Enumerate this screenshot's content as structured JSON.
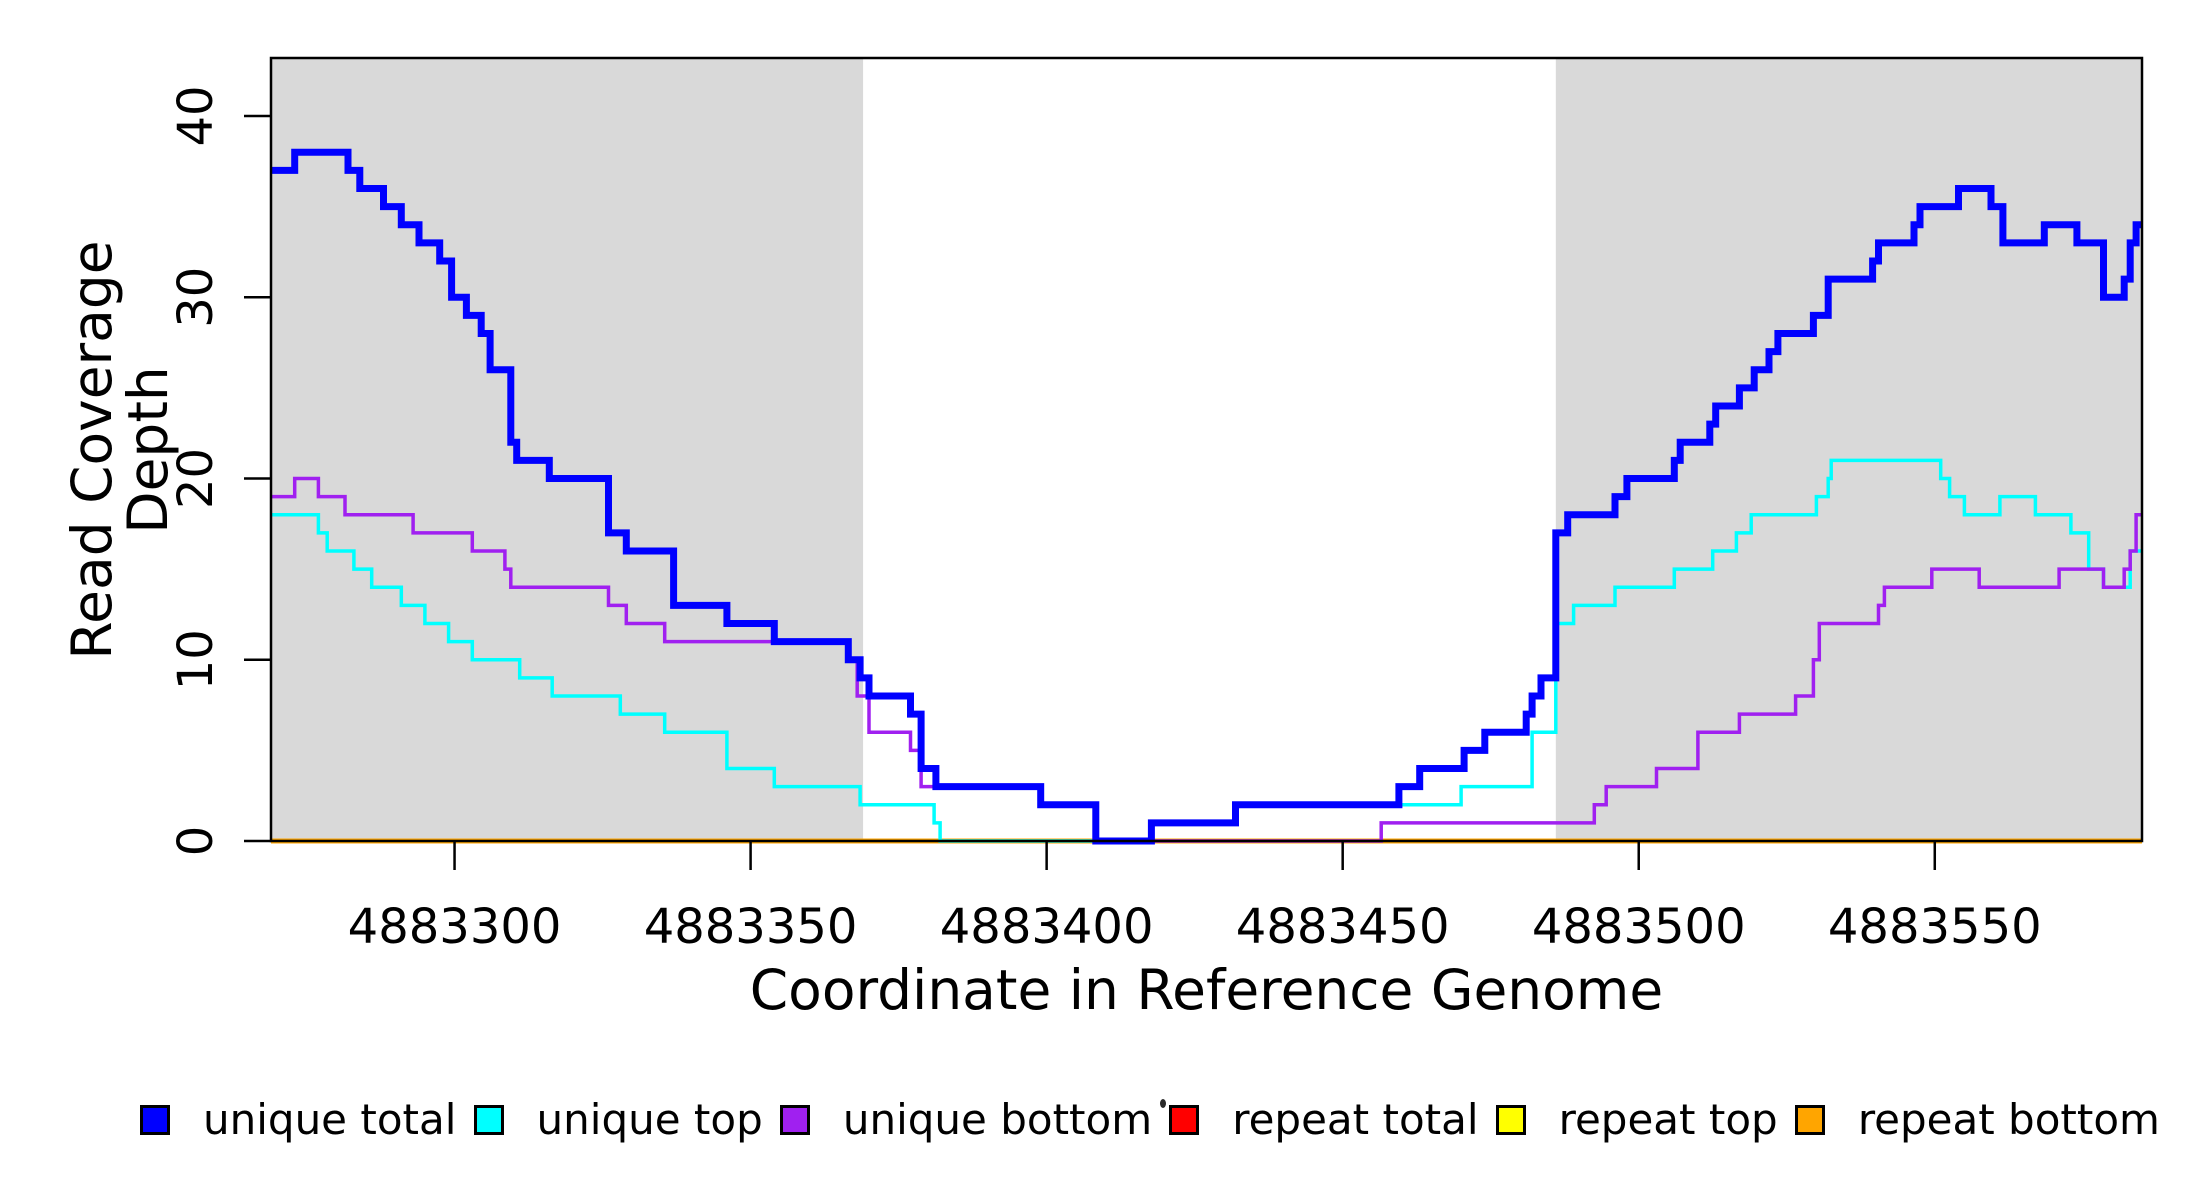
{
  "figure": {
    "x_axis_label": "Coordinate in Reference Genome",
    "y_axis_label": "Read Coverage Depth",
    "background_color": "#ffffff",
    "shaded_region_color": "#d9d9d9",
    "axis_color": "#000000"
  },
  "legend": {
    "items": [
      {
        "label": "unique total",
        "color": "#0000ff"
      },
      {
        "label": "unique top",
        "color": "#00ffff"
      },
      {
        "label": "unique bottom",
        "color": "#a020f0"
      },
      {
        "label": "repeat total",
        "color": "#ff0000"
      },
      {
        "label": "repeat top",
        "color": "#ffff00"
      },
      {
        "label": "repeat bottom",
        "color": "#ffa500"
      }
    ],
    "artifact_dot": "."
  },
  "chart_data": {
    "type": "line",
    "style": "step",
    "title": "",
    "xlabel": "Coordinate in Reference Genome",
    "ylabel": "Read Coverage Depth",
    "xlim": [
      4883269,
      4883585
    ],
    "ylim": [
      0,
      43.2
    ],
    "x_ticks": [
      4883300,
      4883350,
      4883400,
      4883450,
      4883500,
      4883550
    ],
    "y_ticks": [
      0,
      10,
      20,
      30,
      40
    ],
    "grid": false,
    "legend_position": "bottom",
    "shaded_regions": [
      {
        "x0": 4883269,
        "x1": 4883369
      },
      {
        "x0": 4883486,
        "x1": 4883585
      }
    ],
    "draw_order": [
      3,
      4,
      5,
      1,
      2,
      0
    ],
    "series": [
      {
        "name": "unique total",
        "color": "#0000ff",
        "line_width": 7,
        "steps": [
          [
            4883269,
            37
          ],
          [
            4883273,
            38
          ],
          [
            4883282,
            37
          ],
          [
            4883284,
            36
          ],
          [
            4883288,
            35
          ],
          [
            4883291,
            34
          ],
          [
            4883294,
            33
          ],
          [
            4883297.5,
            32
          ],
          [
            4883299.5,
            30
          ],
          [
            4883302,
            29
          ],
          [
            4883304.5,
            28
          ],
          [
            4883306,
            26
          ],
          [
            4883309.5,
            22
          ],
          [
            4883310.5,
            21
          ],
          [
            4883316,
            20
          ],
          [
            4883326,
            17
          ],
          [
            4883329,
            16
          ],
          [
            4883337,
            13
          ],
          [
            4883346,
            12
          ],
          [
            4883354,
            11
          ],
          [
            4883366.5,
            10
          ],
          [
            4883368.5,
            9
          ],
          [
            4883370,
            8
          ],
          [
            4883377,
            7
          ],
          [
            4883378.8,
            4
          ],
          [
            4883381.3,
            3
          ],
          [
            4883399,
            2
          ],
          [
            4883408.3,
            0
          ],
          [
            4883417.7,
            1
          ],
          [
            4883431.9,
            2
          ],
          [
            4883459.5,
            3
          ],
          [
            4883463,
            4
          ],
          [
            4883470.5,
            5
          ],
          [
            4883474,
            6
          ],
          [
            4883481,
            7
          ],
          [
            4883482,
            8
          ],
          [
            4883483.5,
            9
          ],
          [
            4883486,
            17
          ],
          [
            4883488,
            18
          ],
          [
            4883496,
            19
          ],
          [
            4883498,
            20
          ],
          [
            4883506,
            21
          ],
          [
            4883507,
            22
          ],
          [
            4883512,
            23
          ],
          [
            4883513,
            24
          ],
          [
            4883517,
            25
          ],
          [
            4883519.5,
            26
          ],
          [
            4883522,
            27
          ],
          [
            4883523.5,
            28
          ],
          [
            4883529.5,
            29
          ],
          [
            4883532,
            31
          ],
          [
            4883539.5,
            32
          ],
          [
            4883540.5,
            33
          ],
          [
            4883546.5,
            34
          ],
          [
            4883547.5,
            35
          ],
          [
            4883554,
            36
          ],
          [
            4883559.5,
            35
          ],
          [
            4883561.5,
            33
          ],
          [
            4883568.5,
            34
          ],
          [
            4883574,
            33
          ],
          [
            4883578.5,
            30
          ],
          [
            4883582,
            31
          ],
          [
            4883583,
            33
          ],
          [
            4883584,
            34
          ]
        ]
      },
      {
        "name": "unique top",
        "color": "#00ffff",
        "line_width": 3.5,
        "steps": [
          [
            4883269,
            18
          ],
          [
            4883277,
            17
          ],
          [
            4883278.5,
            16
          ],
          [
            4883283,
            15
          ],
          [
            4883286,
            14
          ],
          [
            4883291,
            13
          ],
          [
            4883295,
            12
          ],
          [
            4883299,
            11
          ],
          [
            4883303,
            10
          ],
          [
            4883311,
            9
          ],
          [
            4883316.5,
            8
          ],
          [
            4883328,
            7
          ],
          [
            4883335.5,
            6
          ],
          [
            4883346,
            4
          ],
          [
            4883354,
            3
          ],
          [
            4883368.5,
            2
          ],
          [
            4883381,
            1
          ],
          [
            4883382,
            0
          ],
          [
            4883417.7,
            1
          ],
          [
            4883431.9,
            2
          ],
          [
            4883470,
            3
          ],
          [
            4883482,
            6
          ],
          [
            4883486,
            12
          ],
          [
            4883489,
            13
          ],
          [
            4883496,
            14
          ],
          [
            4883506,
            15
          ],
          [
            4883512.5,
            16
          ],
          [
            4883516.5,
            17
          ],
          [
            4883519,
            18
          ],
          [
            4883530,
            19
          ],
          [
            4883532,
            20
          ],
          [
            4883532.5,
            21
          ],
          [
            4883551,
            20
          ],
          [
            4883552.5,
            19
          ],
          [
            4883555,
            18
          ],
          [
            4883561,
            19
          ],
          [
            4883567,
            18
          ],
          [
            4883573,
            17
          ],
          [
            4883576,
            15
          ],
          [
            4883578.5,
            14
          ],
          [
            4883583,
            16
          ]
        ]
      },
      {
        "name": "unique bottom",
        "color": "#a020f0",
        "line_width": 3.5,
        "steps": [
          [
            4883269,
            19
          ],
          [
            4883273,
            20
          ],
          [
            4883277,
            19
          ],
          [
            4883281.5,
            18
          ],
          [
            4883293,
            17
          ],
          [
            4883303,
            16
          ],
          [
            4883308.5,
            15
          ],
          [
            4883309.5,
            14
          ],
          [
            4883326,
            13
          ],
          [
            4883329,
            12
          ],
          [
            4883335.5,
            11
          ],
          [
            4883366.5,
            10
          ],
          [
            4883368,
            8
          ],
          [
            4883370,
            6
          ],
          [
            4883377,
            5
          ],
          [
            4883378.8,
            3
          ],
          [
            4883399,
            2
          ],
          [
            4883408.3,
            0
          ],
          [
            4883456.5,
            1
          ],
          [
            4883492.5,
            2
          ],
          [
            4883494.5,
            3
          ],
          [
            4883503,
            4
          ],
          [
            4883510,
            6
          ],
          [
            4883517,
            7
          ],
          [
            4883526.5,
            8
          ],
          [
            4883529.5,
            10
          ],
          [
            4883530.5,
            12
          ],
          [
            4883540.5,
            13
          ],
          [
            4883541.5,
            14
          ],
          [
            4883549.5,
            15
          ],
          [
            4883557.5,
            14
          ],
          [
            4883571,
            15
          ],
          [
            4883578.5,
            14
          ],
          [
            4883582,
            15
          ],
          [
            4883583,
            16
          ],
          [
            4883584,
            18
          ]
        ]
      },
      {
        "name": "repeat total",
        "color": "#ff0000",
        "line_width": 3.5,
        "steps": [
          [
            4883269,
            0
          ]
        ]
      },
      {
        "name": "repeat top",
        "color": "#ffff00",
        "line_width": 3.5,
        "steps": [
          [
            4883269,
            0
          ]
        ]
      },
      {
        "name": "repeat bottom",
        "color": "#ffa500",
        "line_width": 5,
        "steps": [
          [
            4883269,
            0
          ]
        ]
      }
    ]
  }
}
